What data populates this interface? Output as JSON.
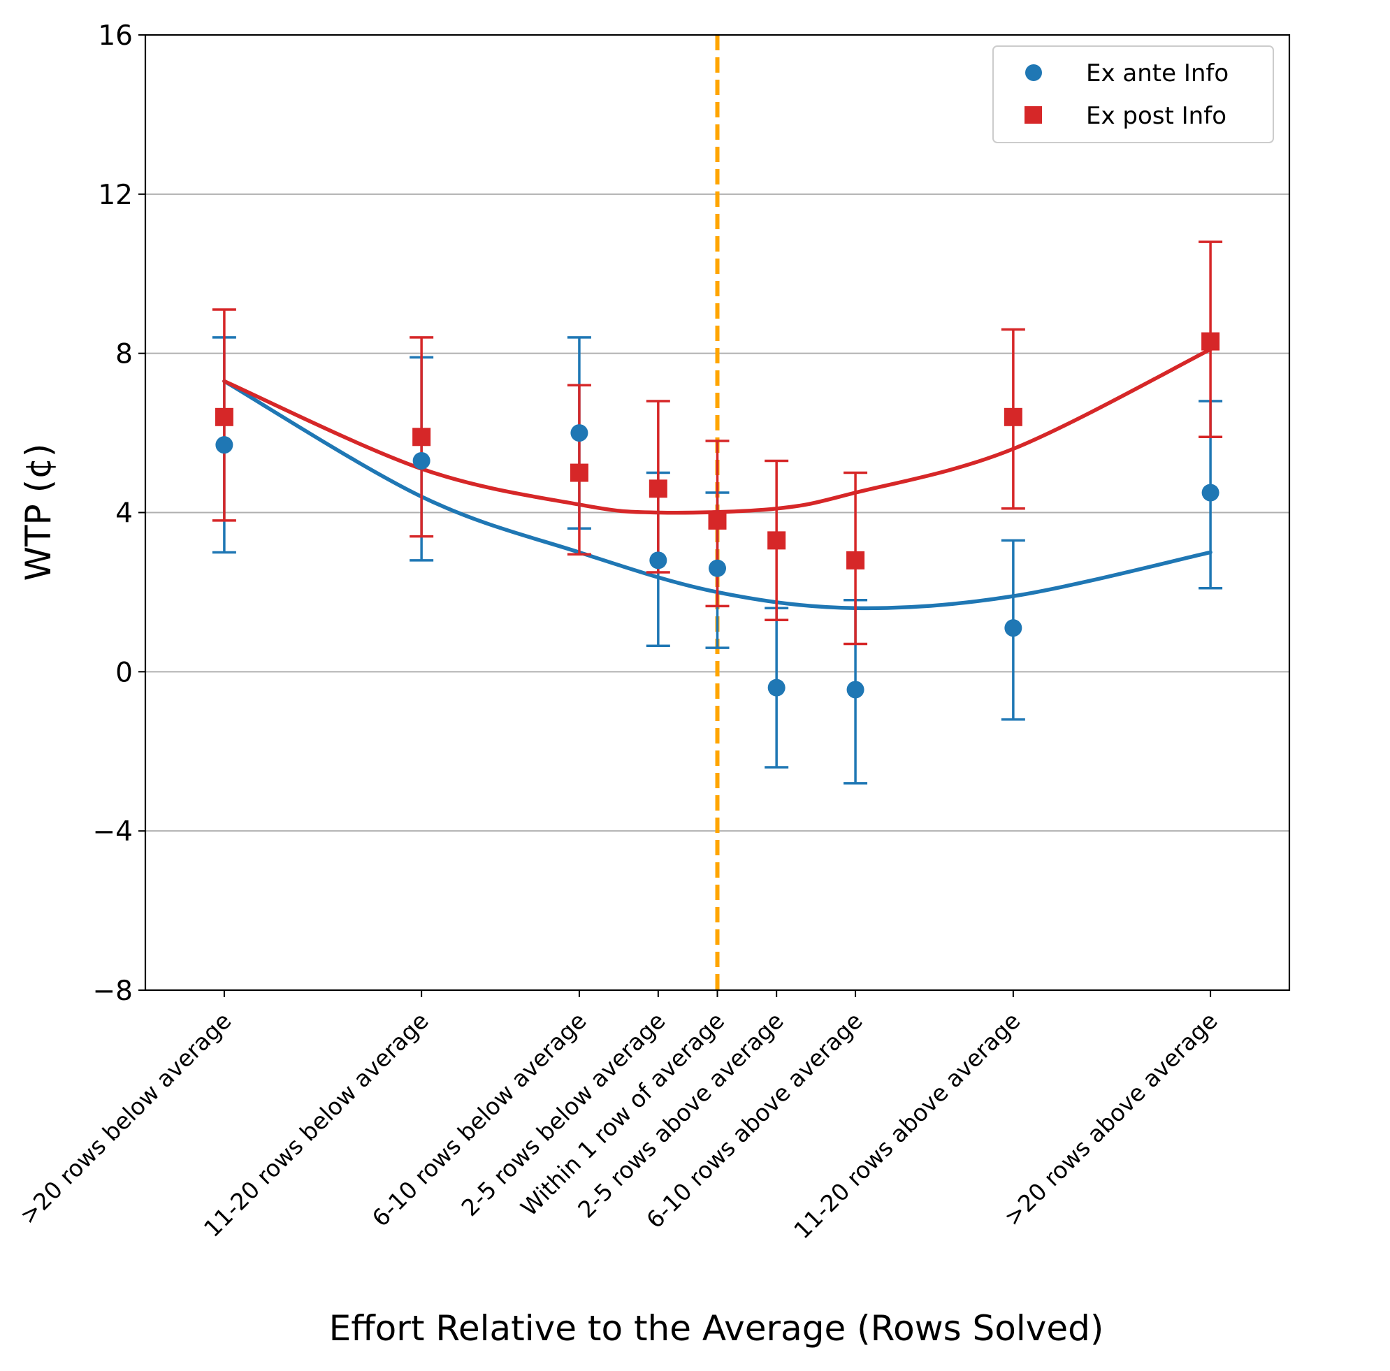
{
  "chart_data": {
    "type": "scatter",
    "title": "",
    "xlabel": "Effort Relative to the Average (Rows Solved)",
    "ylabel": "WTP (¢)",
    "ylim": [
      -8,
      16
    ],
    "yticks": [
      16,
      12,
      8,
      4,
      0,
      -4,
      -8
    ],
    "ytick_labels": [
      "16",
      "12",
      "8",
      "4",
      "0",
      "−4",
      "−8"
    ],
    "grid": "horizontal",
    "legend_position": "top-right",
    "categories": [
      ">20 rows below average",
      "11-20 rows below average",
      "6-10 rows below average",
      "2-5 rows below average",
      "Within 1 row of average",
      "2-5 rows above average",
      "6-10 rows above average",
      "11-20 rows above average",
      ">20 rows above average"
    ],
    "x": [
      -25,
      -15,
      -7,
      -3,
      0,
      3,
      7,
      15,
      25
    ],
    "reference_line": {
      "x": 0,
      "color": "#ffa500",
      "style": "dashed"
    },
    "series": [
      {
        "name": "Ex ante Info",
        "marker": "circle",
        "color": "#1f77b4",
        "values": [
          5.7,
          5.3,
          6.0,
          2.8,
          2.6,
          -0.4,
          -0.45,
          1.1,
          4.5
        ],
        "err_low": [
          3.0,
          2.8,
          3.6,
          0.65,
          0.6,
          -2.4,
          -2.8,
          -1.2,
          2.1
        ],
        "err_high": [
          8.4,
          7.9,
          8.4,
          5.0,
          4.5,
          1.6,
          1.8,
          3.3,
          6.8
        ],
        "fit_line": [
          {
            "x": -25,
            "y": 7.3
          },
          {
            "x": -15,
            "y": 4.4
          },
          {
            "x": -7,
            "y": 3.0
          },
          {
            "x": 0,
            "y": 2.0
          },
          {
            "x": 7,
            "y": 1.6
          },
          {
            "x": 15,
            "y": 1.9
          },
          {
            "x": 25,
            "y": 3.0
          }
        ]
      },
      {
        "name": "Ex post Info",
        "marker": "square",
        "color": "#d62728",
        "values": [
          6.4,
          5.9,
          5.0,
          4.6,
          3.8,
          3.3,
          2.8,
          6.4,
          8.3
        ],
        "err_low": [
          3.8,
          3.4,
          2.95,
          2.5,
          1.65,
          1.3,
          0.7,
          4.1,
          5.9
        ],
        "err_high": [
          9.1,
          8.4,
          7.2,
          6.8,
          5.8,
          5.3,
          5.0,
          8.6,
          10.8
        ],
        "fit_line": [
          {
            "x": -25,
            "y": 7.3
          },
          {
            "x": -15,
            "y": 5.1
          },
          {
            "x": -7,
            "y": 4.2
          },
          {
            "x": -3,
            "y": 4.0
          },
          {
            "x": 3,
            "y": 4.1
          },
          {
            "x": 7,
            "y": 4.5
          },
          {
            "x": 15,
            "y": 5.6
          },
          {
            "x": 25,
            "y": 8.1
          }
        ]
      }
    ]
  }
}
